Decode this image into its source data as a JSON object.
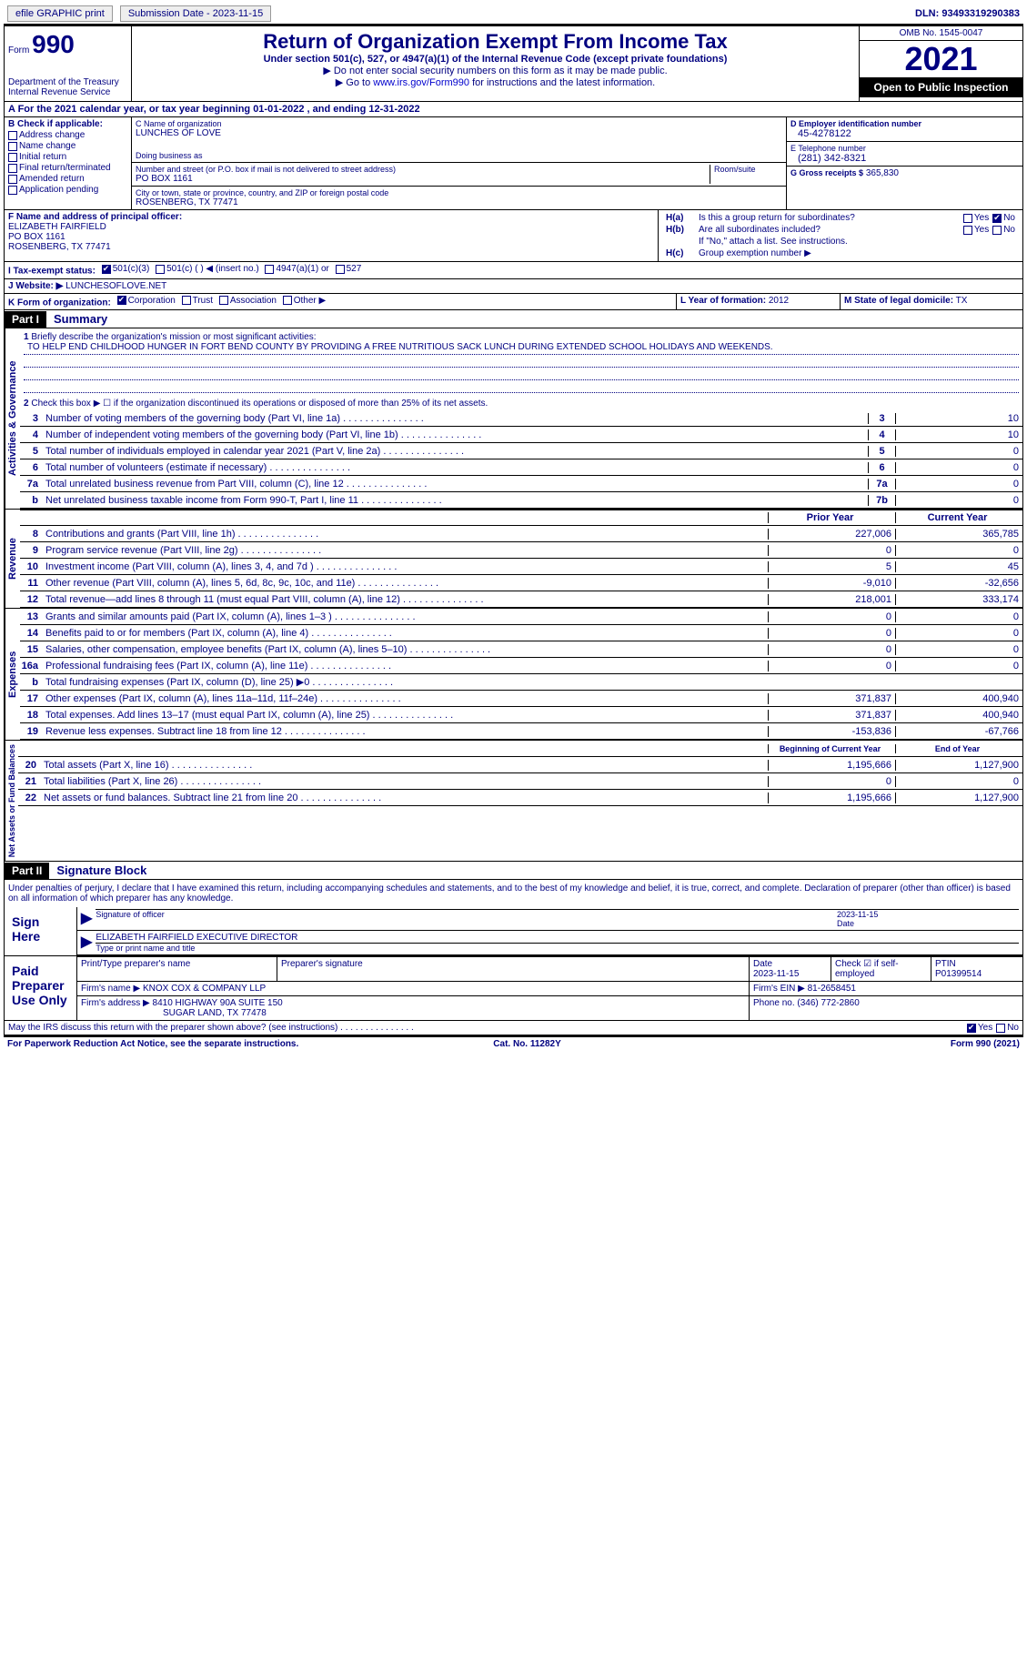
{
  "top": {
    "efile": "efile GRAPHIC print",
    "sub_label": "Submission Date - 2023-11-15",
    "dln": "DLN: 93493319290383"
  },
  "header": {
    "form": "Form",
    "num": "990",
    "dept": "Department of the Treasury Internal Revenue Service",
    "title": "Return of Organization Exempt From Income Tax",
    "sub": "Under section 501(c), 527, or 4947(a)(1) of the Internal Revenue Code (except private foundations)",
    "inst1": "▶ Do not enter social security numbers on this form as it may be made public.",
    "inst2_pre": "▶ Go to ",
    "inst2_link": "www.irs.gov/Form990",
    "inst2_post": " for instructions and the latest information.",
    "omb": "OMB No. 1545-0047",
    "year": "2021",
    "open": "Open to Public Inspection"
  },
  "a": "A For the 2021 calendar year, or tax year beginning 01-01-2022    , and ending 12-31-2022",
  "b": {
    "label": "B Check if applicable:",
    "items": [
      "Address change",
      "Name change",
      "Initial return",
      "Final return/terminated",
      "Amended return",
      "Application pending"
    ]
  },
  "c": {
    "name_label": "C Name of organization",
    "name": "LUNCHES OF LOVE",
    "dba_label": "Doing business as",
    "street_label": "Number and street (or P.O. box if mail is not delivered to street address)",
    "room_label": "Room/suite",
    "street": "PO BOX 1161",
    "city_label": "City or town, state or province, country, and ZIP or foreign postal code",
    "city": "ROSENBERG, TX  77471"
  },
  "d": {
    "ein_label": "D Employer identification number",
    "ein": "45-4278122",
    "tel_label": "E Telephone number",
    "tel": "(281) 342-8321",
    "gross_label": "G Gross receipts $",
    "gross": "365,830"
  },
  "f": {
    "label": "F Name and address of principal officer:",
    "name": "ELIZABETH FAIRFIELD",
    "addr1": "PO BOX 1161",
    "addr2": "ROSENBERG, TX  77471"
  },
  "h": {
    "a": "Is this a group return for subordinates?",
    "b": "Are all subordinates included?",
    "b_note": "If \"No,\" attach a list. See instructions.",
    "c": "Group exemption number ▶"
  },
  "i": {
    "label": "I    Tax-exempt status:",
    "opts": [
      "501(c)(3)",
      "501(c) (  ) ◀ (insert no.)",
      "4947(a)(1) or",
      "527"
    ]
  },
  "j": {
    "label": "J    Website: ▶",
    "val": "LUNCHESOFLOVE.NET"
  },
  "k": {
    "label": "K Form of organization:",
    "opts": [
      "Corporation",
      "Trust",
      "Association",
      "Other ▶"
    ]
  },
  "l": {
    "label": "L Year of formation:",
    "val": "2012"
  },
  "m": {
    "label": "M State of legal domicile:",
    "val": "TX"
  },
  "part1": {
    "hdr": "Part I",
    "title": "Summary",
    "q1_label": "Briefly describe the organization's mission or most significant activities:",
    "mission": "TO HELP END CHILDHOOD HUNGER IN FORT BEND COUNTY BY PROVIDING A FREE NUTRITIOUS SACK LUNCH DURING EXTENDED SCHOOL HOLIDAYS AND WEEKENDS.",
    "q2": "Check this box ▶ ☐  if the organization discontinued its operations or disposed of more than 25% of its net assets.",
    "lines_gov": [
      {
        "n": "3",
        "d": "Number of voting members of the governing body (Part VI, line 1a)",
        "box": "3",
        "v": "10"
      },
      {
        "n": "4",
        "d": "Number of independent voting members of the governing body (Part VI, line 1b)",
        "box": "4",
        "v": "10"
      },
      {
        "n": "5",
        "d": "Total number of individuals employed in calendar year 2021 (Part V, line 2a)",
        "box": "5",
        "v": "0"
      },
      {
        "n": "6",
        "d": "Total number of volunteers (estimate if necessary)",
        "box": "6",
        "v": "0"
      },
      {
        "n": "7a",
        "d": "Total unrelated business revenue from Part VIII, column (C), line 12",
        "box": "7a",
        "v": "0"
      },
      {
        "n": "b",
        "d": "Net unrelated business taxable income from Form 990-T, Part I, line 11",
        "box": "7b",
        "v": "0"
      }
    ],
    "col_headers": [
      "Prior Year",
      "Current Year"
    ],
    "revenue": [
      {
        "n": "8",
        "d": "Contributions and grants (Part VIII, line 1h)",
        "p": "227,006",
        "c": "365,785"
      },
      {
        "n": "9",
        "d": "Program service revenue (Part VIII, line 2g)",
        "p": "0",
        "c": "0"
      },
      {
        "n": "10",
        "d": "Investment income (Part VIII, column (A), lines 3, 4, and 7d )",
        "p": "5",
        "c": "45"
      },
      {
        "n": "11",
        "d": "Other revenue (Part VIII, column (A), lines 5, 6d, 8c, 9c, 10c, and 11e)",
        "p": "-9,010",
        "c": "-32,656"
      },
      {
        "n": "12",
        "d": "Total revenue—add lines 8 through 11 (must equal Part VIII, column (A), line 12)",
        "p": "218,001",
        "c": "333,174"
      }
    ],
    "expenses": [
      {
        "n": "13",
        "d": "Grants and similar amounts paid (Part IX, column (A), lines 1–3 )",
        "p": "0",
        "c": "0"
      },
      {
        "n": "14",
        "d": "Benefits paid to or for members (Part IX, column (A), line 4)",
        "p": "0",
        "c": "0"
      },
      {
        "n": "15",
        "d": "Salaries, other compensation, employee benefits (Part IX, column (A), lines 5–10)",
        "p": "0",
        "c": "0"
      },
      {
        "n": "16a",
        "d": "Professional fundraising fees (Part IX, column (A), line 11e)",
        "p": "0",
        "c": "0"
      },
      {
        "n": "b",
        "d": "Total fundraising expenses (Part IX, column (D), line 25) ▶0",
        "p": "",
        "c": "",
        "shade": true
      },
      {
        "n": "17",
        "d": "Other expenses (Part IX, column (A), lines 11a–11d, 11f–24e)",
        "p": "371,837",
        "c": "400,940"
      },
      {
        "n": "18",
        "d": "Total expenses. Add lines 13–17 (must equal Part IX, column (A), line 25)",
        "p": "371,837",
        "c": "400,940"
      },
      {
        "n": "19",
        "d": "Revenue less expenses. Subtract line 18 from line 12",
        "p": "-153,836",
        "c": "-67,766"
      }
    ],
    "net_headers": [
      "Beginning of Current Year",
      "End of Year"
    ],
    "net": [
      {
        "n": "20",
        "d": "Total assets (Part X, line 16)",
        "p": "1,195,666",
        "c": "1,127,900"
      },
      {
        "n": "21",
        "d": "Total liabilities (Part X, line 26)",
        "p": "0",
        "c": "0"
      },
      {
        "n": "22",
        "d": "Net assets or fund balances. Subtract line 21 from line 20",
        "p": "1,195,666",
        "c": "1,127,900"
      }
    ],
    "vert_gov": "Activities & Governance",
    "vert_rev": "Revenue",
    "vert_exp": "Expenses",
    "vert_net": "Net Assets or Fund Balances"
  },
  "part2": {
    "hdr": "Part II",
    "title": "Signature Block",
    "decl": "Under penalties of perjury, I declare that I have examined this return, including accompanying schedules and statements, and to the best of my knowledge and belief, it is true, correct, and complete. Declaration of preparer (other than officer) is based on all information of which preparer has any knowledge.",
    "sign_here": "Sign Here",
    "sig_officer": "Signature of officer",
    "sig_date": "2023-11-15",
    "date_label": "Date",
    "officer_name": "ELIZABETH FAIRFIELD  EXECUTIVE DIRECTOR",
    "type_name": "Type or print name and title",
    "paid": "Paid Preparer Use Only",
    "prep_name_label": "Print/Type preparer's name",
    "prep_sig_label": "Preparer's signature",
    "prep_date_label": "Date",
    "prep_date": "2023-11-15",
    "check_self": "Check ☑ if self-employed",
    "ptin_label": "PTIN",
    "ptin": "P01399514",
    "firm_name_label": "Firm's name    ▶",
    "firm_name": "KNOX COX & COMPANY LLP",
    "firm_ein_label": "Firm's EIN ▶",
    "firm_ein": "81-2658451",
    "firm_addr_label": "Firm's address ▶",
    "firm_addr1": "8410 HIGHWAY 90A SUITE 150",
    "firm_addr2": "SUGAR LAND, TX  77478",
    "phone_label": "Phone no.",
    "phone": "(346) 772-2860",
    "discuss": "May the IRS discuss this return with the preparer shown above? (see instructions)",
    "yes": "Yes",
    "no": "No"
  },
  "footer": {
    "l": "For Paperwork Reduction Act Notice, see the separate instructions.",
    "m": "Cat. No. 11282Y",
    "r": "Form 990 (2021)"
  }
}
